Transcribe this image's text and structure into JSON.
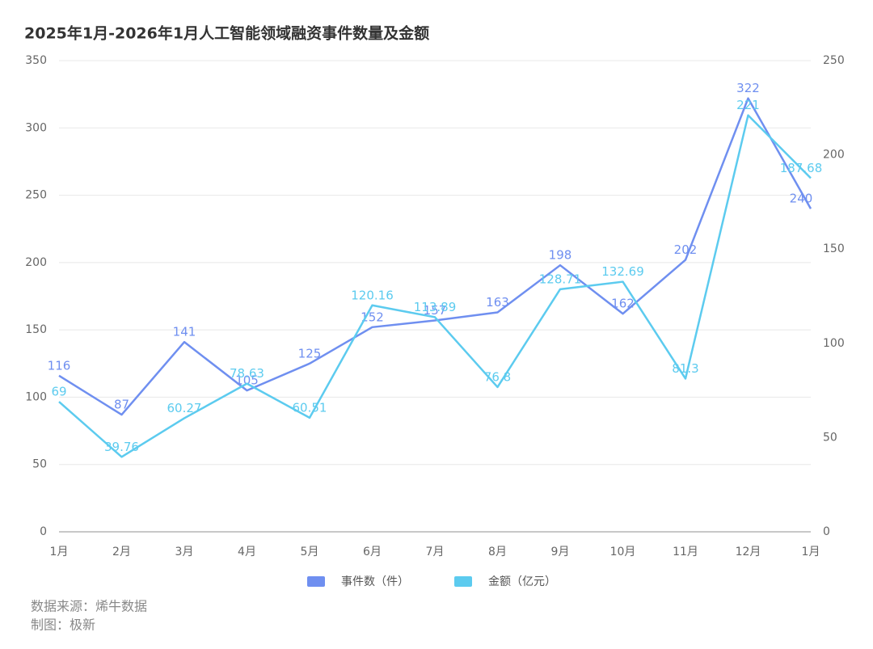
{
  "chart_data": {
    "type": "line",
    "title": "2025年1月-2026年1月人工智能领域融资事件数量及金额",
    "categories": [
      "1月",
      "2月",
      "3月",
      "4月",
      "5月",
      "6月",
      "7月",
      "8月",
      "9月",
      "10月",
      "11月",
      "12月",
      "1月"
    ],
    "series": [
      {
        "name": "事件数（件）",
        "color": "#6f8ff0",
        "values": [
          116,
          87,
          141,
          105,
          125,
          152,
          157,
          163,
          198,
          162,
          202,
          322,
          240
        ]
      },
      {
        "name": "金额（亿元）",
        "color": "#5ccbef",
        "axis": "y2",
        "values": [
          69,
          39.76,
          60.27,
          78.63,
          60.51,
          120.16,
          113.89,
          76.8,
          128.71,
          132.69,
          81.3,
          221,
          187.68
        ]
      }
    ],
    "ylim": [
      0,
      350
    ],
    "yticks": [
      0,
      50,
      100,
      150,
      200,
      250,
      300,
      350
    ],
    "y2lim": [
      0,
      250
    ],
    "y2ticks": [
      0,
      50,
      100,
      150,
      200,
      250
    ],
    "grid": true,
    "legend": "bottom",
    "annotations": [
      "数据来源：烯牛数据",
      "制图：极新"
    ]
  }
}
